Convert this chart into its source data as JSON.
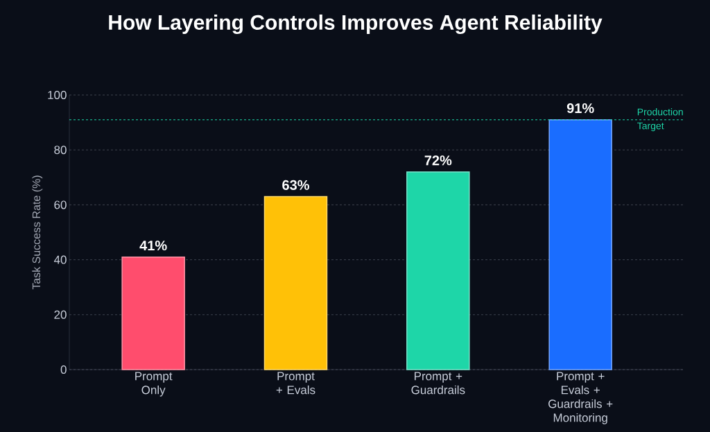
{
  "chart_data": {
    "type": "bar",
    "title": "How Layering Controls Improves Agent Reliability",
    "ylabel": "Task Success Rate (%)",
    "categories": [
      "Prompt Only",
      "Prompt + Evals",
      "Prompt + Guardrails",
      "Prompt + Evals + Guardrails + Monitoring"
    ],
    "values": [
      41,
      63,
      72,
      91
    ],
    "colors": [
      "#ff4d6d",
      "#ffc107",
      "#1ed6a8",
      "#1a6dff"
    ],
    "value_labels": [
      "41%",
      "63%",
      "72%",
      "91%"
    ],
    "ylim": [
      0,
      100
    ],
    "yticks": [
      0,
      20,
      40,
      60,
      80,
      100
    ],
    "grid": "y",
    "ref_lines": [
      {
        "axis": "y",
        "value": 91,
        "label": "Production Target",
        "color": "#1ed6a8",
        "line_style": "dashed"
      }
    ]
  }
}
